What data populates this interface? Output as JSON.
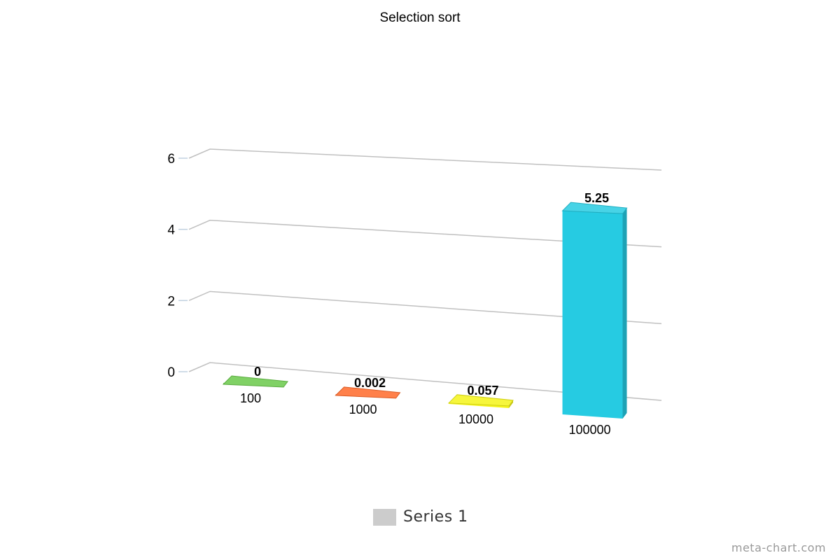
{
  "chart_data": {
    "type": "bar",
    "title": "Selection sort",
    "categories": [
      "100",
      "1000",
      "10000",
      "100000"
    ],
    "values": [
      0,
      0.002,
      0.057,
      5.25
    ],
    "value_labels": [
      "0",
      "0.002",
      "0.057",
      "5.25"
    ],
    "bar_colors": [
      "#6ac94a",
      "#ff6a2a",
      "#f4f41a",
      "#26cbe2"
    ],
    "ylim": [
      0,
      6
    ],
    "yticks": [
      0,
      2,
      4,
      6
    ],
    "grid": true,
    "legend": {
      "position": "bottom",
      "label": "Series 1",
      "swatch_color": "#cccccc"
    }
  },
  "watermark": "meta-chart.com"
}
